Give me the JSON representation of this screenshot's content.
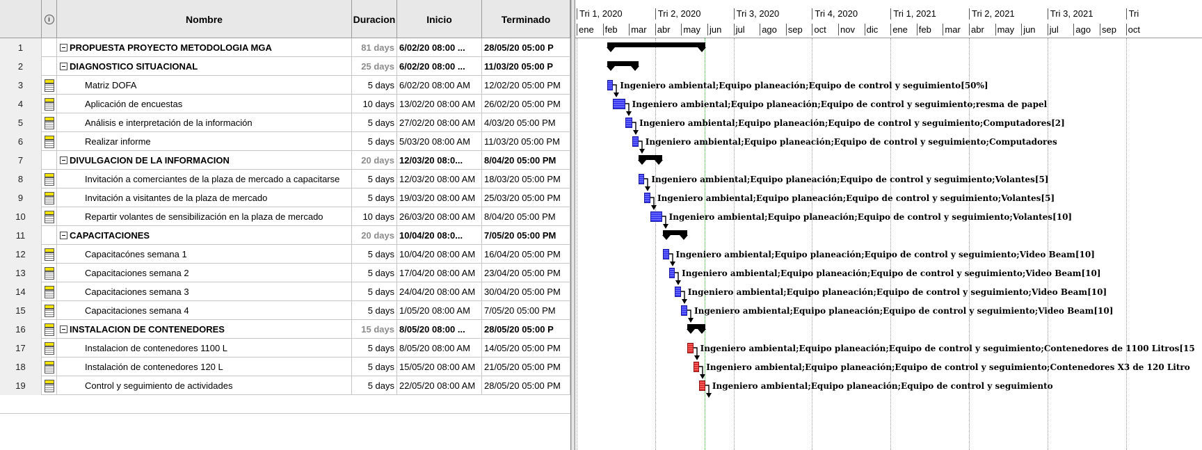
{
  "headers": {
    "nombre": "Nombre",
    "duracion": "Duracion",
    "inicio": "Inicio",
    "terminado": "Terminado"
  },
  "rows": [
    {
      "id": "1",
      "name": "PROPUESTA PROYECTO METODOLOGIA MGA",
      "dur": "81 days",
      "start": "6/02/20 08:00 ...",
      "end": "28/05/20 05:00 P",
      "summary": true
    },
    {
      "id": "2",
      "name": "DIAGNOSTICO SITUACIONAL",
      "dur": "25 days",
      "start": "6/02/20 08:00 ...",
      "end": "11/03/20 05:00 P",
      "summary": true
    },
    {
      "id": "3",
      "name": "Matriz DOFA",
      "dur": "5 days",
      "start": "6/02/20 08:00 AM",
      "end": "12/02/20 05:00 PM",
      "summary": false
    },
    {
      "id": "4",
      "name": "Aplicación de encuestas",
      "dur": "10 days",
      "start": "13/02/20 08:00 AM",
      "end": "26/02/20 05:00 PM",
      "summary": false
    },
    {
      "id": "5",
      "name": "Análisis e interpretación de la información",
      "dur": "5 days",
      "start": "27/02/20 08:00 AM",
      "end": "4/03/20 05:00 PM",
      "summary": false
    },
    {
      "id": "6",
      "name": "Realizar informe",
      "dur": "5 days",
      "start": "5/03/20 08:00 AM",
      "end": "11/03/20 05:00 PM",
      "summary": false
    },
    {
      "id": "7",
      "name": "DIVULGACION DE LA INFORMACION",
      "dur": "20 days",
      "start": "12/03/20 08:0...",
      "end": "8/04/20 05:00 PM",
      "summary": true
    },
    {
      "id": "8",
      "name": "Invitación a comerciantes de la plaza de mercado a capacitarse",
      "dur": "5 days",
      "start": "12/03/20 08:00 AM",
      "end": "18/03/20 05:00 PM",
      "summary": false
    },
    {
      "id": "9",
      "name": "Invitación a visitantes de la plaza de mercado",
      "dur": "5 days",
      "start": "19/03/20 08:00 AM",
      "end": "25/03/20 05:00 PM",
      "summary": false
    },
    {
      "id": "10",
      "name": "Repartir volantes de sensibilización  en la plaza de mercado",
      "dur": "10 days",
      "start": "26/03/20 08:00 AM",
      "end": "8/04/20 05:00 PM",
      "summary": false
    },
    {
      "id": "11",
      "name": "CAPACITACIONES",
      "dur": "20 days",
      "start": "10/04/20 08:0...",
      "end": "7/05/20 05:00 PM",
      "summary": true
    },
    {
      "id": "12",
      "name": "Capacitacónes semana 1",
      "dur": "5 days",
      "start": "10/04/20 08:00 AM",
      "end": "16/04/20 05:00 PM",
      "summary": false
    },
    {
      "id": "13",
      "name": "Capacitaciones semana 2",
      "dur": "5 days",
      "start": "17/04/20 08:00 AM",
      "end": "23/04/20 05:00 PM",
      "summary": false
    },
    {
      "id": "14",
      "name": "Capacitaciones semana 3",
      "dur": "5 days",
      "start": "24/04/20 08:00 AM",
      "end": "30/04/20 05:00 PM",
      "summary": false
    },
    {
      "id": "15",
      "name": "Capacitaciones semana 4",
      "dur": "5 days",
      "start": "1/05/20 08:00 AM",
      "end": "7/05/20 05:00 PM",
      "summary": false
    },
    {
      "id": "16",
      "name": "INSTALACION DE CONTENEDORES",
      "dur": "15 days",
      "start": "8/05/20 08:00 ...",
      "end": "28/05/20 05:00 P",
      "summary": true
    },
    {
      "id": "17",
      "name": "Instalacion de contenedores 1100 L",
      "dur": "5 days",
      "start": "8/05/20 08:00 AM",
      "end": "14/05/20 05:00 PM",
      "summary": false
    },
    {
      "id": "18",
      "name": "Instalación de contenedores 120 L",
      "dur": "5 days",
      "start": "15/05/20 08:00 AM",
      "end": "21/05/20 05:00 PM",
      "summary": false
    },
    {
      "id": "19",
      "name": "Control y seguimiento de actividades",
      "dur": "5 days",
      "start": "22/05/20 08:00 AM",
      "end": "28/05/20 05:00 PM",
      "summary": false
    }
  ],
  "timeline": {
    "quarters": [
      "Tri 1, 2020",
      "Tri 2, 2020",
      "Tri 3, 2020",
      "Tri 4, 2020",
      "Tri 1, 2021",
      "Tri 2, 2021",
      "Tri 3, 2021",
      "Tri"
    ],
    "months": [
      "ene",
      "feb",
      "mar",
      "abr",
      "may",
      "jun",
      "jul",
      "ago",
      "sep",
      "oct",
      "nov",
      "dic",
      "ene",
      "feb",
      "mar",
      "abr",
      "may",
      "jun",
      "jul",
      "ago",
      "sep",
      "oct"
    ]
  },
  "resource_labels": [
    "Ingeniero ambiental;Equipo planeación;Equipo de control y seguimiento[50%]",
    "Ingeniero ambiental;Equipo planeación;Equipo de control y seguimiento;resma de papel",
    "Ingeniero ambiental;Equipo planeación;Equipo de control y seguimiento;Computadores[2]",
    "Ingeniero ambiental;Equipo planeación;Equipo de control y seguimiento;Computadores",
    "Ingeniero ambiental;Equipo planeación;Equipo de control y seguimiento;Volantes[5]",
    "Ingeniero ambiental;Equipo planeación;Equipo de control y seguimiento;Volantes[5]",
    "Ingeniero ambiental;Equipo planeación;Equipo de control y seguimiento;Volantes[10]",
    "Ingeniero ambiental;Equipo planeación;Equipo de control y seguimiento;Video Beam[10]",
    "Ingeniero ambiental;Equipo planeación;Equipo de control y seguimiento;Video Beam[10]",
    "Ingeniero ambiental;Equipo planeación;Equipo de control y seguimiento;Video Beam[10]",
    "Ingeniero ambiental;Equipo planeación;Equipo de control y seguimiento;Video Beam[10]",
    "Ingeniero ambiental;Equipo planeación;Equipo de control y seguimiento;Contenedores de 1100 Litros[15",
    "Ingeniero ambiental;Equipo planeación;Equipo de control y seguimiento;Contenedores X3  de 120 Litro",
    "Ingeniero ambiental;Equipo planeación;Equipo de control y seguimiento"
  ],
  "colors": {
    "task_bar": "#3a3af0",
    "critical_bar": "#e03030",
    "summary_bar": "#000000",
    "today_line": "#2bb02b"
  }
}
